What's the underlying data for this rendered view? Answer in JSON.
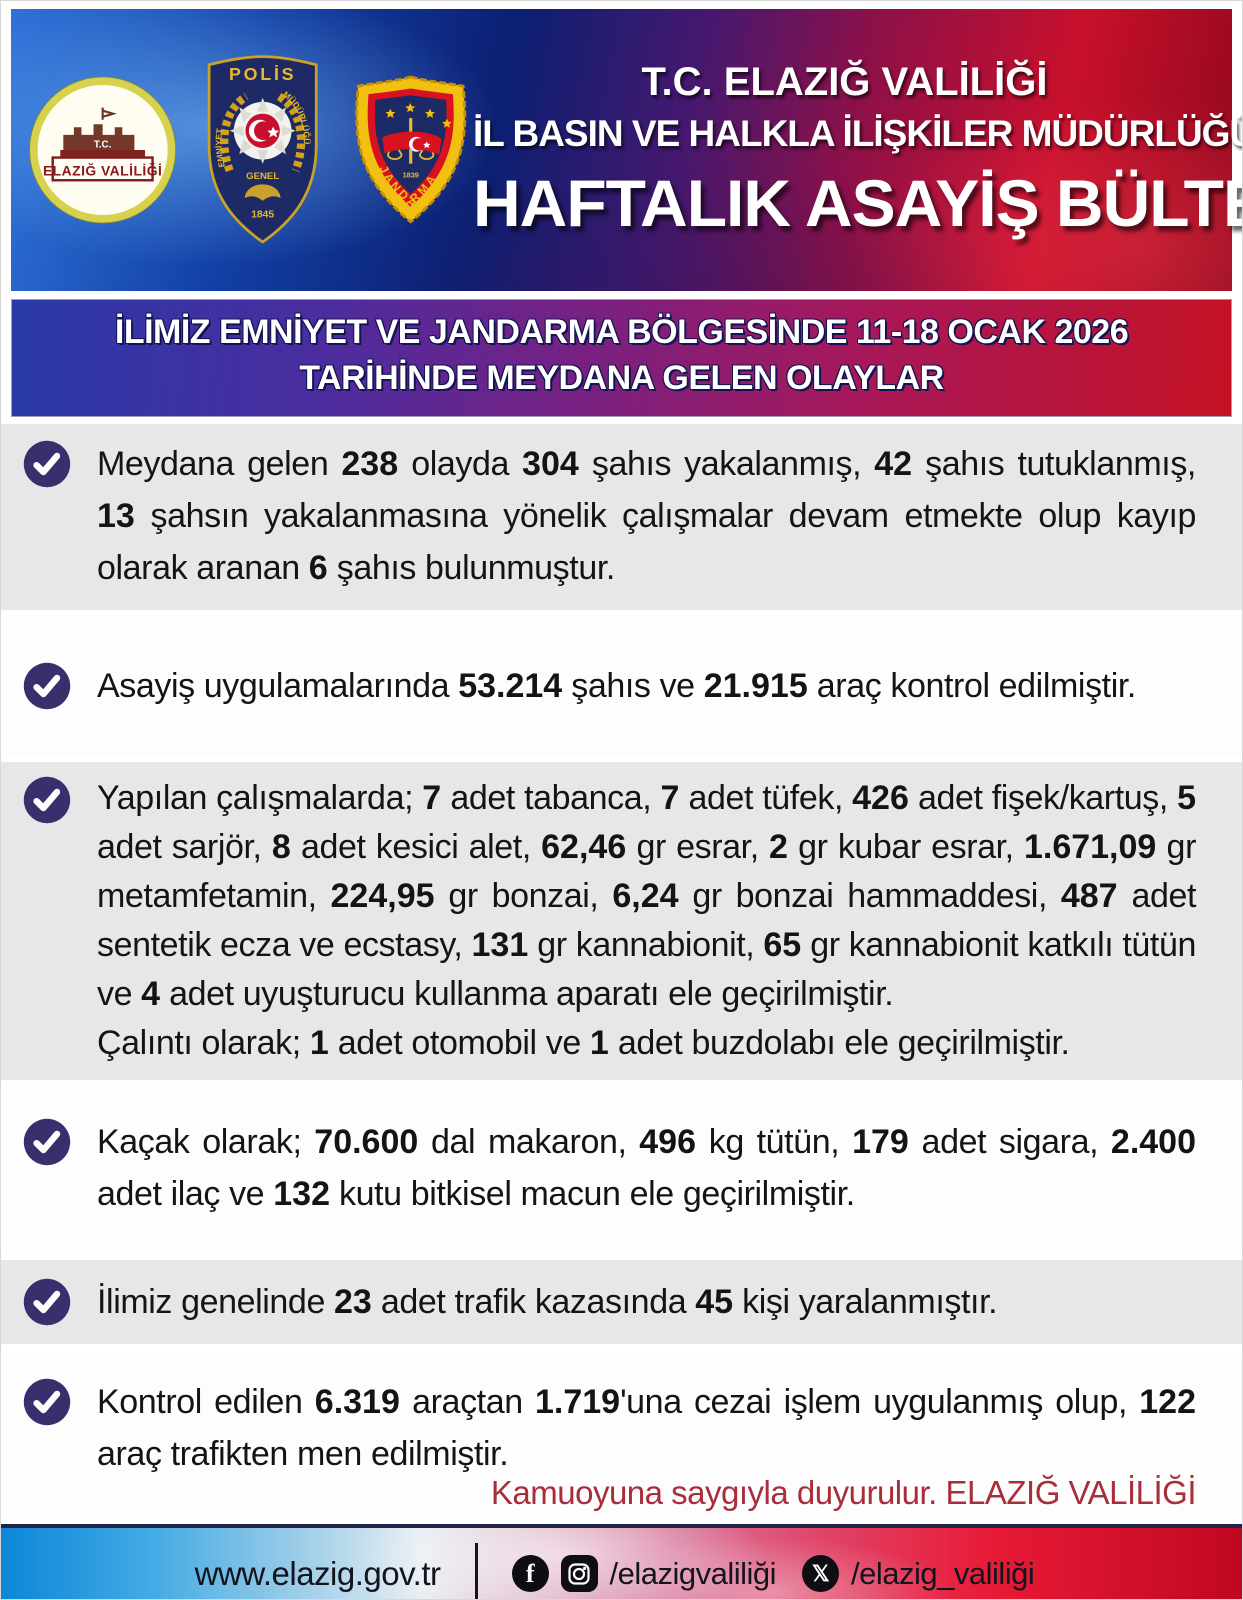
{
  "colors": {
    "check_circle": "#382f6d",
    "gray_panel": "#e8e7e7",
    "closing_red": "#a82e3c",
    "banner_blue": "#2a3aa8",
    "banner_red": "#c41224"
  },
  "header": {
    "title_line1": "T.C. ELAZIĞ VALİLİĞİ",
    "title_line2": "İL BASIN VE HALKLA İLİŞKİLER MÜDÜRLÜĞÜ",
    "title_line3": "HAFTALIK ASAYİŞ BÜLTENİ",
    "valilik_logo": {
      "tc": "T.C.",
      "name": "ELAZIĞ VALİLİĞİ"
    },
    "polis_logo": {
      "top": "POLİS",
      "left": "EMNİYET",
      "right": "MÜDÜRLÜĞÜ",
      "bottom": "GENEL",
      "year": "1845"
    },
    "jandarma_logo": {
      "name": "JANDARMA",
      "year": "1839"
    }
  },
  "banner": {
    "line1": "İLİMİZ EMNİYET VE JANDARMA BÖLGESİNDE 11-18 OCAK 2026",
    "line2": "TARİHİNDE MEYDANA GELEN OLAYLAR"
  },
  "bullets": [
    {
      "style": "gray",
      "paragraphs": [
        [
          [
            "Meydana gelen ",
            0
          ],
          [
            "238",
            1
          ],
          [
            " olayda ",
            0
          ],
          [
            "304",
            1
          ],
          [
            " şahıs yakalanmış, ",
            0
          ],
          [
            "42",
            1
          ],
          [
            " şahıs tutuklanmış, ",
            0
          ],
          [
            "13",
            1
          ],
          [
            " şahsın yakalanmasına yönelik çalışmalar devam etmekte olup kayıp olarak aranan ",
            0
          ],
          [
            "6",
            1
          ],
          [
            " şahıs bulunmuştur.",
            0
          ]
        ]
      ]
    },
    {
      "style": "white",
      "paragraphs": [
        [
          [
            "Asayiş uygulamalarında ",
            0
          ],
          [
            "53.214",
            1
          ],
          [
            " şahıs ve ",
            0
          ],
          [
            "21.915",
            1
          ],
          [
            " araç kontrol edilmiştir.",
            0
          ]
        ]
      ]
    },
    {
      "style": "gray",
      "paragraphs": [
        [
          [
            "Yapılan çalışmalarda; ",
            0
          ],
          [
            "7",
            1
          ],
          [
            " adet tabanca, ",
            0
          ],
          [
            "7",
            1
          ],
          [
            " adet tüfek, ",
            0
          ],
          [
            "426",
            1
          ],
          [
            " adet fişek/kartuş, ",
            0
          ],
          [
            "5",
            1
          ],
          [
            " adet sarjör, ",
            0
          ],
          [
            "8",
            1
          ],
          [
            " adet kesici alet, ",
            0
          ],
          [
            "62,46",
            1
          ],
          [
            " gr esrar, ",
            0
          ],
          [
            "2",
            1
          ],
          [
            " gr kubar esrar, ",
            0
          ],
          [
            "1.671,09",
            1
          ],
          [
            " gr metamfetamin, ",
            0
          ],
          [
            "224,95",
            1
          ],
          [
            " gr bonzai, ",
            0
          ],
          [
            "6,24",
            1
          ],
          [
            " gr bonzai hammaddesi, ",
            0
          ],
          [
            "487",
            1
          ],
          [
            " adet sentetik ecza ve ecstasy, ",
            0
          ],
          [
            "131",
            1
          ],
          [
            " gr kannabionit, ",
            0
          ],
          [
            "65",
            1
          ],
          [
            " gr kannabionit katkılı tütün ve ",
            0
          ],
          [
            "4",
            1
          ],
          [
            " adet uyuşturucu kullanma aparatı  ele geçirilmiştir.",
            0
          ]
        ],
        [
          [
            "Çalıntı olarak;  ",
            0
          ],
          [
            "1",
            1
          ],
          [
            " adet otomobil ve ",
            0
          ],
          [
            "1",
            1
          ],
          [
            " adet buzdolabı ele geçirilmiştir.",
            0
          ]
        ]
      ]
    },
    {
      "style": "white",
      "paragraphs": [
        [
          [
            "Kaçak olarak; ",
            0
          ],
          [
            "70.600",
            1
          ],
          [
            " dal makaron, ",
            0
          ],
          [
            "496",
            1
          ],
          [
            " kg tütün, ",
            0
          ],
          [
            "179",
            1
          ],
          [
            " adet sigara, ",
            0
          ],
          [
            "2.400",
            1
          ],
          [
            " adet ilaç ve ",
            0
          ],
          [
            "132",
            1
          ],
          [
            " kutu bitkisel macun ele geçirilmiştir.",
            0
          ]
        ]
      ]
    },
    {
      "style": "gray",
      "paragraphs": [
        [
          [
            "İlimiz genelinde ",
            0
          ],
          [
            "23",
            1
          ],
          [
            " adet trafik kazasında ",
            0
          ],
          [
            "45",
            1
          ],
          [
            " kişi yaralanmıştır.",
            0
          ]
        ]
      ]
    },
    {
      "style": "white",
      "paragraphs": [
        [
          [
            "Kontrol edilen ",
            0
          ],
          [
            "6.319",
            1
          ],
          [
            " araçtan ",
            0
          ],
          [
            "1.719",
            1
          ],
          [
            "'una cezai işlem uygulanmış olup, ",
            0
          ],
          [
            "122",
            1
          ],
          [
            " araç trafikten men edilmiştir.",
            0
          ]
        ]
      ]
    }
  ],
  "closing": "Kamuoyuna saygıyla duyurulur. ELAZIĞ VALİLİĞİ",
  "footer": {
    "url": "www.elazig.gov.tr",
    "facebook_instagram_handle": "/elazigvaliliği",
    "x_handle": "/elazig_valiliği",
    "facebook_glyph": "f",
    "x_glyph": "𝕏"
  }
}
